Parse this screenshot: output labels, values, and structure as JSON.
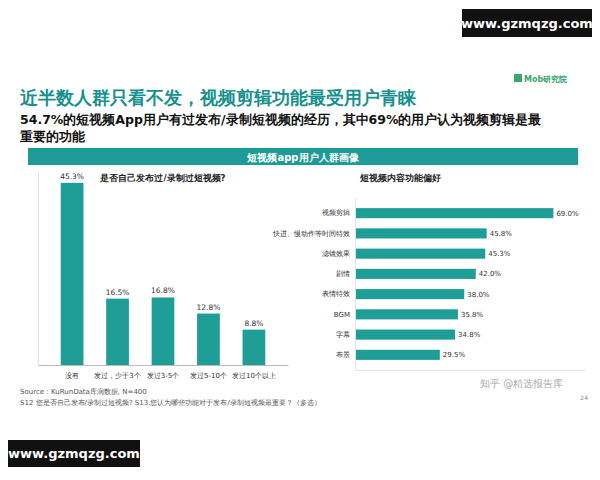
{
  "header": {
    "url_top": "www.gzmqzg.com",
    "logo": "Mob研究院",
    "title": "近半数人群只看不发，视频剪辑功能最受用户青睐",
    "subtitle": [
      "54.7%的短视频App用户有过发布/录制短视频的经历，其中69%的用户认为视频剪辑是最",
      "重要的功能"
    ],
    "banner": "短视频app用户人群画像"
  },
  "chart_data": [
    {
      "type": "bar",
      "title": "是否自己发布过/录制过短视频?",
      "categories": [
        "没有",
        "发过，少于3个",
        "发过3-5个",
        "发过5-10个",
        "发过10个以上"
      ],
      "values": [
        45.3,
        16.5,
        16.8,
        12.8,
        8.8
      ],
      "value_labels": [
        "45.3%",
        "16.5%",
        "16.8%",
        "12.8%",
        "8.8%"
      ],
      "color": "#1e9e97",
      "ylim": [
        0,
        48
      ],
      "data_labels": true,
      "tick_labels": "x"
    },
    {
      "type": "bar",
      "orientation": "horizontal",
      "title": "短视频内容功能偏好",
      "categories": [
        "视频剪辑",
        "快进、慢动作等时间特效",
        "滤镜效果",
        "剧情",
        "表情特效",
        "BGM",
        "字幕",
        "布景"
      ],
      "values": [
        69.0,
        45.8,
        45.3,
        42.0,
        38.0,
        35.8,
        34.8,
        29.5
      ],
      "value_labels": [
        "69.0%",
        "45.8%",
        "45.3%",
        "42.0%",
        "38.0%",
        "35.8%",
        "34.8%",
        "29.5%"
      ],
      "color": "#1e9e97",
      "xlim": [
        0,
        80
      ],
      "data_labels": true,
      "tick_labels": "y"
    }
  ],
  "footer": {
    "source": "Source：KuRunData库润数据, N=400",
    "questions": "S12 您是否自己发布/录制过短视频? S13.您认为哪些功能对于发布/录制短视频最重要？（多选）",
    "watermark": "知乎 @精选报告库",
    "page": "24",
    "url_bottom": "www.gzmqzg.com"
  }
}
